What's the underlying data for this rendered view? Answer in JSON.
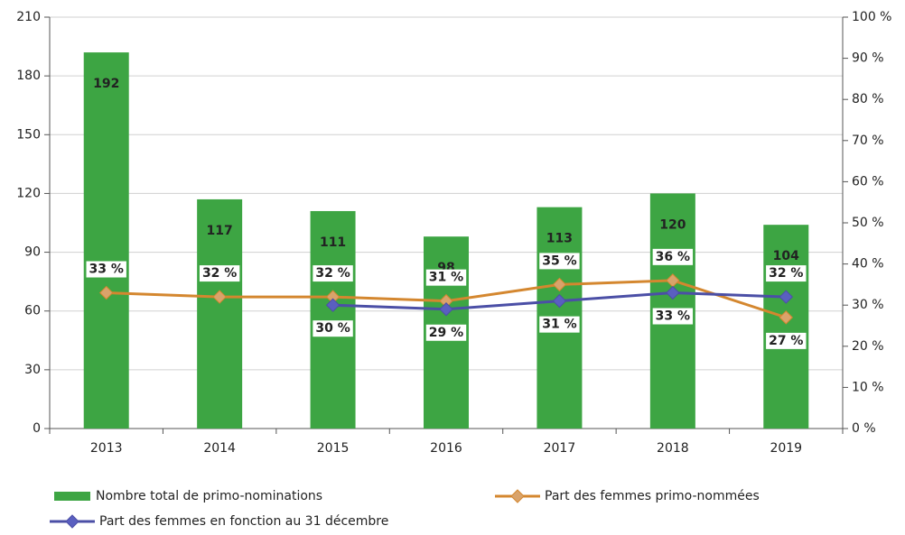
{
  "chart_data": {
    "type": "bar-line",
    "categories": [
      "2013",
      "2014",
      "2015",
      "2016",
      "2017",
      "2018",
      "2019"
    ],
    "series": [
      {
        "name": "Nombre total de primo-nominations",
        "type": "bar",
        "color": "#3da543",
        "values": [
          192,
          117,
          111,
          98,
          113,
          120,
          104
        ]
      },
      {
        "name": "Part des femmes primo-nommées",
        "type": "line",
        "axis": "y2",
        "color": "#d4872f",
        "marker_color": "#d9a36b",
        "values": [
          33,
          32,
          32,
          31,
          35,
          36,
          27
        ],
        "value_labels": [
          "33 %",
          "32 %",
          "32 %",
          "31 %",
          "35 %",
          "36 %",
          "27 %"
        ]
      },
      {
        "name": "Part des femmes en fonction au 31 décembre",
        "type": "line",
        "axis": "y2",
        "color": "#4b4fa6",
        "marker_color": "#5a5fc0",
        "values": [
          null,
          null,
          30,
          29,
          31,
          33,
          32
        ],
        "value_labels": [
          null,
          null,
          "30 %",
          "29 %",
          "31 %",
          "33 %",
          "32 %"
        ]
      }
    ],
    "ylim": [
      0,
      210
    ],
    "yticks": [
      0,
      30,
      60,
      90,
      120,
      150,
      180,
      210
    ],
    "y2lim": [
      0,
      100
    ],
    "y2ticks": [
      {
        "value": 0,
        "label": "0 %"
      },
      {
        "value": 10,
        "label": "10 %"
      },
      {
        "value": 20,
        "label": "20 %"
      },
      {
        "value": 30,
        "label": "30 %"
      },
      {
        "value": 40,
        "label": "40 %"
      },
      {
        "value": 50,
        "label": "50 %"
      },
      {
        "value": 60,
        "label": "60 %"
      },
      {
        "value": 70,
        "label": "70 %"
      },
      {
        "value": 80,
        "label": "80 %"
      },
      {
        "value": 90,
        "label": "90 %"
      },
      {
        "value": 100,
        "label": "100 %"
      }
    ],
    "grid": true,
    "legend": "bottom"
  }
}
